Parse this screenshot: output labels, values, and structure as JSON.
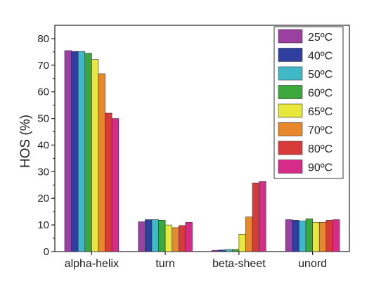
{
  "chart_data": {
    "type": "bar",
    "title": "",
    "xlabel": "",
    "ylabel": "HOS (%)",
    "ylim": [
      0,
      85
    ],
    "yticks": [
      0,
      10,
      20,
      30,
      40,
      50,
      60,
      70,
      80
    ],
    "grid": false,
    "legend_position": "top-right",
    "categories": [
      "alpha-helix",
      "turn",
      "beta-sheet",
      "unord"
    ],
    "series": [
      {
        "name": "25ºC",
        "color": "#9b3fa0",
        "values": [
          75.5,
          11.2,
          0.5,
          12.0
        ]
      },
      {
        "name": "40ºC",
        "color": "#2f3fa0",
        "values": [
          75.2,
          12.0,
          0.6,
          11.8
        ]
      },
      {
        "name": "50ºC",
        "color": "#3fb8c8",
        "values": [
          75.2,
          12.0,
          0.8,
          11.5
        ]
      },
      {
        "name": "60ºC",
        "color": "#3aa83a",
        "values": [
          74.5,
          11.8,
          0.8,
          12.3
        ]
      },
      {
        "name": "65ºC",
        "color": "#e8e83a",
        "values": [
          72.2,
          10.0,
          6.5,
          11.0
        ]
      },
      {
        "name": "70ºC",
        "color": "#e8882a",
        "values": [
          66.8,
          9.0,
          13.0,
          11.0
        ]
      },
      {
        "name": "80ºC",
        "color": "#d83a3a",
        "values": [
          52.0,
          9.8,
          25.8,
          11.8
        ]
      },
      {
        "name": "90ºC",
        "color": "#d82a88",
        "values": [
          50.0,
          11.0,
          26.3,
          12.0
        ]
      }
    ]
  }
}
